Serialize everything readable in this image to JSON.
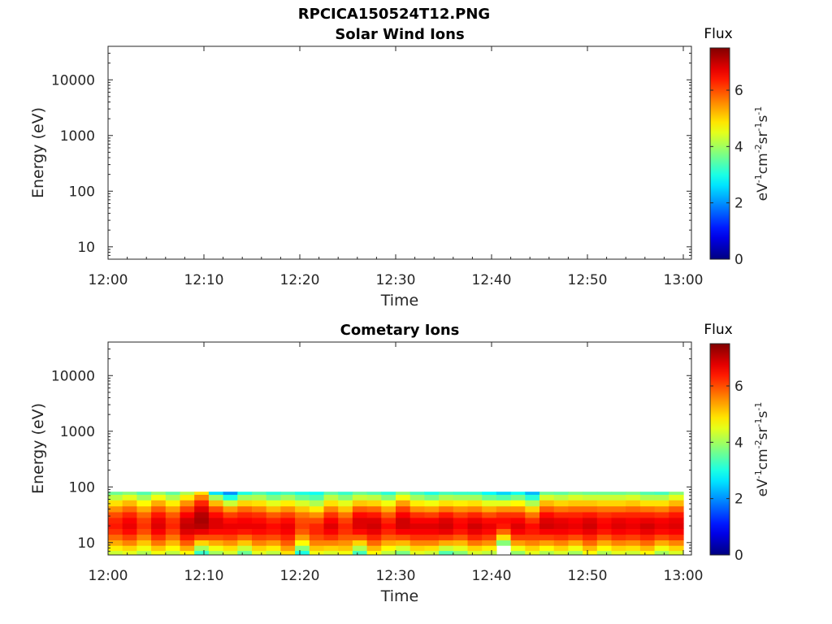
{
  "figure": {
    "title": "RPCICA150524T12.PNG"
  },
  "chart_data": [
    {
      "type": "heatmap",
      "title": "Solar Wind Ions",
      "xlabel": "Time",
      "ylabel": "Energy (eV)",
      "yscale": "log",
      "ylim": [
        6,
        40000
      ],
      "xlim": [
        "12:00",
        "13:00"
      ],
      "x_ticks": [
        "12:00",
        "12:10",
        "12:20",
        "12:30",
        "12:40",
        "12:50",
        "13:00"
      ],
      "y_ticks": [
        "10",
        "100",
        "1000",
        "10000"
      ],
      "colorbar": {
        "title": "Flux",
        "label": "eV-1cm-2sr-1s-1",
        "range": [
          0,
          7.5
        ],
        "ticks": [
          "0",
          "2",
          "4",
          "6"
        ]
      },
      "data_present": false
    },
    {
      "type": "heatmap",
      "title": "Cometary Ions",
      "xlabel": "Time",
      "ylabel": "Energy (eV)",
      "yscale": "log",
      "ylim": [
        6,
        40000
      ],
      "xlim": [
        "12:00",
        "13:00"
      ],
      "x_ticks": [
        "12:00",
        "12:10",
        "12:20",
        "12:30",
        "12:40",
        "12:50",
        "13:00"
      ],
      "y_ticks": [
        "10",
        "100",
        "1000",
        "10000"
      ],
      "colorbar": {
        "title": "Flux",
        "label": "eV-1cm-2sr-1s-1",
        "range": [
          0,
          7.5
        ],
        "ticks": [
          "0",
          "2",
          "4",
          "6"
        ]
      },
      "energy_range_ev": [
        6,
        82
      ],
      "energy_levels_ev": [
        6.5,
        8,
        10,
        12.5,
        16,
        20,
        25,
        32,
        40,
        52,
        66,
        82
      ],
      "time_bin_minutes": 1.5,
      "flux_by_time_bin": [
        [
          4.3,
          4.8,
          5.3,
          5.8,
          6.2,
          6.4,
          6.3,
          6.0,
          5.5,
          4.9,
          4.2,
          3.6
        ],
        [
          4.5,
          5.0,
          5.6,
          6.1,
          6.5,
          6.7,
          6.6,
          6.3,
          5.8,
          5.2,
          4.5,
          3.8
        ],
        [
          4.1,
          4.6,
          5.1,
          5.6,
          6.0,
          6.2,
          6.1,
          5.8,
          5.3,
          4.7,
          4.0,
          3.4
        ],
        [
          4.6,
          5.1,
          5.7,
          6.2,
          6.6,
          6.8,
          6.7,
          6.4,
          5.9,
          5.3,
          4.6,
          3.9
        ],
        [
          4.2,
          4.7,
          5.2,
          5.7,
          6.1,
          6.3,
          6.2,
          5.9,
          5.4,
          4.8,
          4.1,
          3.5
        ],
        [
          4.7,
          5.3,
          5.9,
          6.4,
          6.8,
          7.0,
          6.9,
          6.6,
          6.1,
          5.5,
          4.8,
          4.1
        ],
        [
          3.2,
          4.0,
          5.0,
          6.0,
          6.7,
          7.1,
          7.2,
          7.1,
          6.8,
          6.3,
          5.6,
          4.9
        ],
        [
          4.0,
          4.6,
          5.3,
          6.0,
          6.5,
          6.8,
          6.8,
          6.5,
          6.0,
          5.2,
          4.0,
          2.6
        ],
        [
          4.4,
          4.9,
          5.5,
          6.1,
          6.5,
          6.7,
          6.5,
          6.1,
          5.4,
          4.3,
          3.0,
          2.0
        ],
        [
          3.6,
          4.3,
          5.1,
          5.8,
          6.4,
          6.7,
          6.6,
          6.3,
          5.8,
          5.0,
          4.0,
          3.0
        ],
        [
          4.5,
          5.0,
          5.6,
          6.1,
          6.5,
          6.7,
          6.5,
          6.2,
          5.6,
          4.9,
          4.1,
          3.4
        ],
        [
          4.2,
          4.8,
          5.4,
          6.0,
          6.4,
          6.5,
          6.3,
          5.9,
          5.2,
          4.5,
          3.7,
          3.1
        ],
        [
          4.9,
          5.4,
          5.9,
          6.3,
          6.6,
          6.7,
          6.5,
          6.1,
          5.5,
          4.8,
          4.0,
          3.3
        ],
        [
          3.0,
          3.8,
          4.7,
          5.4,
          5.9,
          6.1,
          6.0,
          5.7,
          5.1,
          4.4,
          3.6,
          3.0
        ],
        [
          4.6,
          5.1,
          5.6,
          6.0,
          6.3,
          6.3,
          6.0,
          5.5,
          4.8,
          4.1,
          3.4,
          2.9
        ],
        [
          4.4,
          5.0,
          5.6,
          6.2,
          6.6,
          6.8,
          6.6,
          6.2,
          5.6,
          4.9,
          4.2,
          3.5
        ],
        [
          4.6,
          5.1,
          5.5,
          5.9,
          6.2,
          6.3,
          6.1,
          5.7,
          5.1,
          4.5,
          3.8,
          3.2
        ],
        [
          3.3,
          4.1,
          5.0,
          5.9,
          6.5,
          6.8,
          6.8,
          6.5,
          5.9,
          5.1,
          4.3,
          3.6
        ],
        [
          4.7,
          5.2,
          5.8,
          6.3,
          6.7,
          6.9,
          6.8,
          6.4,
          5.8,
          5.0,
          4.2,
          3.4
        ],
        [
          4.2,
          4.7,
          5.3,
          5.9,
          6.3,
          6.5,
          6.3,
          5.9,
          5.3,
          4.6,
          3.8,
          3.1
        ],
        [
          3.7,
          4.4,
          5.2,
          6.0,
          6.6,
          6.9,
          6.9,
          6.6,
          6.1,
          5.4,
          4.6,
          3.8
        ],
        [
          4.5,
          5.0,
          5.6,
          6.2,
          6.6,
          6.8,
          6.6,
          6.2,
          5.5,
          4.8,
          4.0,
          3.3
        ],
        [
          4.3,
          4.9,
          5.6,
          6.2,
          6.6,
          6.8,
          6.6,
          6.1,
          5.4,
          4.6,
          3.7,
          3.0
        ],
        [
          3.4,
          4.3,
          5.3,
          6.1,
          6.7,
          6.9,
          6.8,
          6.4,
          5.7,
          4.9,
          4.1,
          3.3
        ],
        [
          3.8,
          4.5,
          5.2,
          5.9,
          6.4,
          6.6,
          6.5,
          6.1,
          5.5,
          4.8,
          4.0,
          3.2
        ],
        [
          4.4,
          5.0,
          5.7,
          6.3,
          6.7,
          6.9,
          6.7,
          6.3,
          5.6,
          4.9,
          4.0,
          3.2
        ],
        [
          4.2,
          4.8,
          5.5,
          6.1,
          6.5,
          6.7,
          6.5,
          6.0,
          5.3,
          4.5,
          3.6,
          2.8
        ],
        [
          0.0,
          0.0,
          3.8,
          4.9,
          5.8,
          6.4,
          6.5,
          6.2,
          5.5,
          4.5,
          3.4,
          2.5
        ],
        [
          3.9,
          4.6,
          5.4,
          6.1,
          6.6,
          6.8,
          6.6,
          6.2,
          5.5,
          4.7,
          3.7,
          2.9
        ],
        [
          4.5,
          5.0,
          5.6,
          6.1,
          6.4,
          6.5,
          6.2,
          5.7,
          5.0,
          4.1,
          3.1,
          2.3
        ],
        [
          4.1,
          4.7,
          5.4,
          6.1,
          6.6,
          6.9,
          6.8,
          6.5,
          5.9,
          5.2,
          4.4,
          3.6
        ],
        [
          4.4,
          5.0,
          5.6,
          6.2,
          6.6,
          6.8,
          6.7,
          6.3,
          5.7,
          5.0,
          4.2,
          3.5
        ],
        [
          4.0,
          4.6,
          5.3,
          6.0,
          6.5,
          6.7,
          6.6,
          6.3,
          5.8,
          5.1,
          4.4,
          3.7
        ],
        [
          4.7,
          5.2,
          5.8,
          6.3,
          6.7,
          6.9,
          6.8,
          6.4,
          5.8,
          5.1,
          4.3,
          3.6
        ],
        [
          4.1,
          4.7,
          5.3,
          5.9,
          6.4,
          6.6,
          6.5,
          6.2,
          5.7,
          5.0,
          4.3,
          3.6
        ],
        [
          4.5,
          5.0,
          5.6,
          6.2,
          6.6,
          6.8,
          6.7,
          6.3,
          5.7,
          5.0,
          4.3,
          3.6
        ],
        [
          4.3,
          4.9,
          5.5,
          6.1,
          6.5,
          6.7,
          6.6,
          6.3,
          5.8,
          5.1,
          4.4,
          3.7
        ],
        [
          4.7,
          5.2,
          5.8,
          6.3,
          6.7,
          6.9,
          6.7,
          6.3,
          5.7,
          4.9,
          4.1,
          3.4
        ],
        [
          4.0,
          4.6,
          5.3,
          6.0,
          6.5,
          6.7,
          6.6,
          6.2,
          5.6,
          4.9,
          4.1,
          3.3
        ],
        [
          4.4,
          5.0,
          5.6,
          6.2,
          6.6,
          6.8,
          6.7,
          6.4,
          5.9,
          5.2,
          4.5,
          3.8
        ]
      ]
    }
  ]
}
